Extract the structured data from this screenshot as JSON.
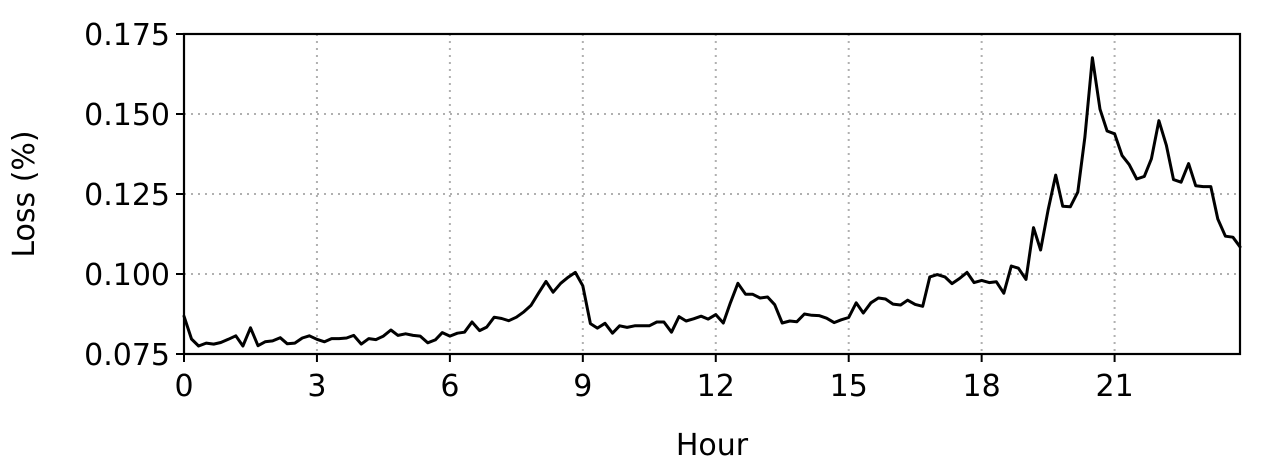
{
  "chart_data": {
    "type": "line",
    "title": "",
    "xlabel": "Hour",
    "ylabel": "Loss (%)",
    "xlim": [
      0,
      23.83
    ],
    "ylim": [
      0.075,
      0.175
    ],
    "xticks": [
      0,
      3,
      6,
      9,
      12,
      15,
      18,
      21
    ],
    "xtick_labels": [
      "0",
      "3",
      "6",
      "9",
      "12",
      "15",
      "18",
      "21"
    ],
    "yticks": [
      0.075,
      0.1,
      0.125,
      0.15,
      0.175
    ],
    "ytick_labels": [
      "0.075",
      "0.100",
      "0.125",
      "0.150",
      "0.175"
    ],
    "grid": true,
    "legend": "none",
    "series": [
      {
        "color": "#000000",
        "points": [
          [
            0.0,
            0.0868
          ],
          [
            0.17,
            0.0797
          ],
          [
            0.33,
            0.0775
          ],
          [
            0.5,
            0.0784
          ],
          [
            0.67,
            0.0781
          ],
          [
            0.83,
            0.0786
          ],
          [
            1.0,
            0.0796
          ],
          [
            1.17,
            0.0807
          ],
          [
            1.33,
            0.0775
          ],
          [
            1.5,
            0.0832
          ],
          [
            1.67,
            0.0776
          ],
          [
            1.83,
            0.0788
          ],
          [
            2.0,
            0.0791
          ],
          [
            2.17,
            0.0801
          ],
          [
            2.33,
            0.0782
          ],
          [
            2.5,
            0.0784
          ],
          [
            2.67,
            0.08
          ],
          [
            2.83,
            0.0807
          ],
          [
            3.0,
            0.0796
          ],
          [
            3.17,
            0.0788
          ],
          [
            3.33,
            0.0798
          ],
          [
            3.5,
            0.0798
          ],
          [
            3.67,
            0.08
          ],
          [
            3.83,
            0.0808
          ],
          [
            4.0,
            0.0781
          ],
          [
            4.17,
            0.0798
          ],
          [
            4.33,
            0.0795
          ],
          [
            4.5,
            0.0806
          ],
          [
            4.67,
            0.0825
          ],
          [
            4.83,
            0.0808
          ],
          [
            5.0,
            0.0813
          ],
          [
            5.17,
            0.0808
          ],
          [
            5.33,
            0.0806
          ],
          [
            5.5,
            0.0785
          ],
          [
            5.67,
            0.0794
          ],
          [
            5.83,
            0.0817
          ],
          [
            6.0,
            0.0806
          ],
          [
            6.17,
            0.0815
          ],
          [
            6.33,
            0.0818
          ],
          [
            6.5,
            0.085
          ],
          [
            6.67,
            0.0823
          ],
          [
            6.83,
            0.0834
          ],
          [
            7.0,
            0.0865
          ],
          [
            7.17,
            0.0861
          ],
          [
            7.33,
            0.0854
          ],
          [
            7.5,
            0.0865
          ],
          [
            7.67,
            0.0882
          ],
          [
            7.83,
            0.0902
          ],
          [
            8.0,
            0.094
          ],
          [
            8.17,
            0.0977
          ],
          [
            8.33,
            0.0943
          ],
          [
            8.5,
            0.0971
          ],
          [
            8.67,
            0.099
          ],
          [
            8.83,
            0.1005
          ],
          [
            9.0,
            0.0963
          ],
          [
            9.17,
            0.0845
          ],
          [
            9.33,
            0.0831
          ],
          [
            9.5,
            0.0846
          ],
          [
            9.67,
            0.0815
          ],
          [
            9.83,
            0.0838
          ],
          [
            10.0,
            0.0833
          ],
          [
            10.17,
            0.0838
          ],
          [
            10.33,
            0.0838
          ],
          [
            10.5,
            0.0838
          ],
          [
            10.67,
            0.085
          ],
          [
            10.83,
            0.085
          ],
          [
            11.0,
            0.0818
          ],
          [
            11.17,
            0.0867
          ],
          [
            11.33,
            0.0853
          ],
          [
            11.5,
            0.086
          ],
          [
            11.67,
            0.0868
          ],
          [
            11.83,
            0.0859
          ],
          [
            12.0,
            0.0873
          ],
          [
            12.17,
            0.0847
          ],
          [
            12.33,
            0.091
          ],
          [
            12.5,
            0.0971
          ],
          [
            12.67,
            0.0937
          ],
          [
            12.83,
            0.0937
          ],
          [
            13.0,
            0.0925
          ],
          [
            13.17,
            0.0928
          ],
          [
            13.33,
            0.0904
          ],
          [
            13.5,
            0.0847
          ],
          [
            13.67,
            0.0853
          ],
          [
            13.83,
            0.0851
          ],
          [
            14.0,
            0.0875
          ],
          [
            14.17,
            0.0871
          ],
          [
            14.33,
            0.087
          ],
          [
            14.5,
            0.0862
          ],
          [
            14.67,
            0.0848
          ],
          [
            14.83,
            0.0857
          ],
          [
            15.0,
            0.0864
          ],
          [
            15.17,
            0.091
          ],
          [
            15.33,
            0.0878
          ],
          [
            15.5,
            0.091
          ],
          [
            15.67,
            0.0925
          ],
          [
            15.83,
            0.0922
          ],
          [
            16.0,
            0.0906
          ],
          [
            16.17,
            0.0903
          ],
          [
            16.33,
            0.0918
          ],
          [
            16.5,
            0.0905
          ],
          [
            16.67,
            0.0899
          ],
          [
            16.83,
            0.0991
          ],
          [
            17.0,
            0.0998
          ],
          [
            17.17,
            0.0991
          ],
          [
            17.33,
            0.097
          ],
          [
            17.5,
            0.0986
          ],
          [
            17.67,
            0.1005
          ],
          [
            17.83,
            0.0973
          ],
          [
            18.0,
            0.098
          ],
          [
            18.17,
            0.0973
          ],
          [
            18.33,
            0.0976
          ],
          [
            18.5,
            0.094
          ],
          [
            18.67,
            0.1025
          ],
          [
            18.83,
            0.1018
          ],
          [
            19.0,
            0.0983
          ],
          [
            19.17,
            0.1145
          ],
          [
            19.33,
            0.1075
          ],
          [
            19.5,
            0.12
          ],
          [
            19.67,
            0.1309
          ],
          [
            19.83,
            0.1212
          ],
          [
            20.0,
            0.121
          ],
          [
            20.17,
            0.1256
          ],
          [
            20.33,
            0.1428
          ],
          [
            20.5,
            0.1676
          ],
          [
            20.67,
            0.1515
          ],
          [
            20.83,
            0.1447
          ],
          [
            21.0,
            0.1438
          ],
          [
            21.17,
            0.137
          ],
          [
            21.33,
            0.1342
          ],
          [
            21.5,
            0.1297
          ],
          [
            21.67,
            0.1305
          ],
          [
            21.83,
            0.136
          ],
          [
            22.0,
            0.1479
          ],
          [
            22.17,
            0.1402
          ],
          [
            22.33,
            0.1295
          ],
          [
            22.5,
            0.1287
          ],
          [
            22.67,
            0.1345
          ],
          [
            22.83,
            0.1276
          ],
          [
            23.0,
            0.1273
          ],
          [
            23.17,
            0.1273
          ],
          [
            23.33,
            0.1172
          ],
          [
            23.5,
            0.1118
          ],
          [
            23.67,
            0.1115
          ],
          [
            23.83,
            0.1085
          ]
        ]
      }
    ]
  }
}
